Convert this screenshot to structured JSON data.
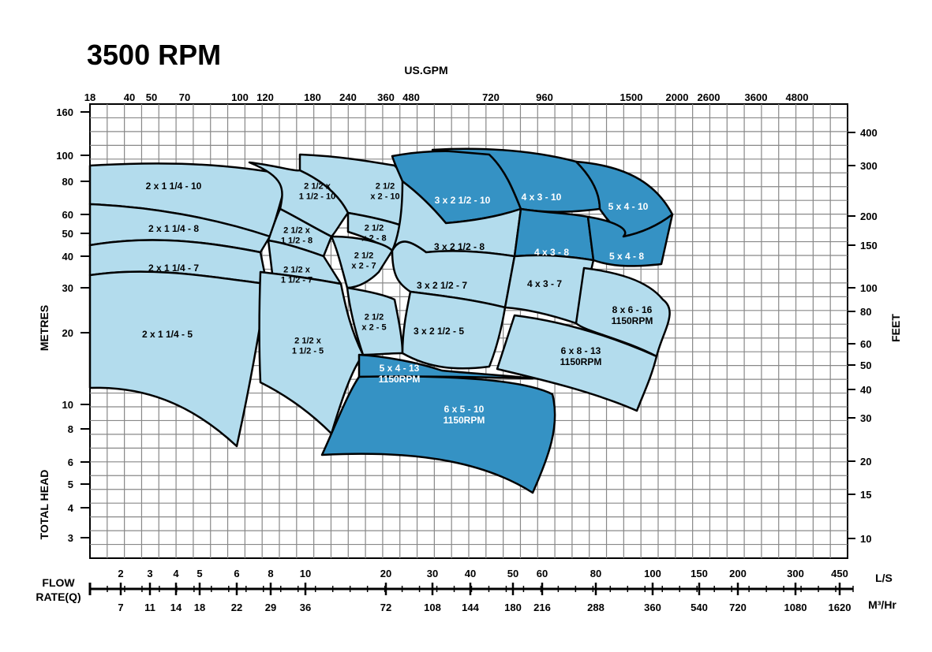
{
  "chart_data": {
    "type": "area",
    "title": "3500 RPM",
    "top_axis_title": "US.GPM",
    "top_ticks": [
      "18",
      "40",
      "50",
      "70",
      "100",
      "120",
      "180",
      "240",
      "360",
      "480",
      "720",
      "960",
      "1500",
      "2000",
      "2600",
      "3600",
      "4800"
    ],
    "left_axis_titles": [
      "METRES",
      "TOTAL HEAD"
    ],
    "left_ticks": [
      "160",
      "100",
      "80",
      "60",
      "50",
      "40",
      "30",
      "20",
      "10",
      "8",
      "6",
      "5",
      "4",
      "3"
    ],
    "right_axis_title": "FEET",
    "right_ticks": [
      "400",
      "300",
      "200",
      "150",
      "100",
      "80",
      "60",
      "50",
      "40",
      "30",
      "20",
      "15",
      "10"
    ],
    "bottom_axis_title": [
      "FLOW",
      "RATE(Q)"
    ],
    "bottom_ticks_ls": [
      "2",
      "3",
      "4",
      "5",
      "6",
      "8",
      "10",
      "20",
      "30",
      "40",
      "50",
      "60",
      "80",
      "100",
      "150",
      "200",
      "300",
      "450"
    ],
    "bottom_ticks_m3hr": [
      "7",
      "11",
      "14",
      "18",
      "22",
      "29",
      "36",
      "72",
      "108",
      "144",
      "180",
      "216",
      "288",
      "360",
      "540",
      "720",
      "1080",
      "1620"
    ],
    "unit_ls": "L/S",
    "unit_m3hr": "M³/Hr",
    "colors": {
      "light": "#b3dced",
      "dark": "#3592c4",
      "grid": "#888888",
      "outline": "#000000"
    },
    "regions": [
      {
        "labels": [
          "2 x 1 1/4 - 10"
        ],
        "shade": "light"
      },
      {
        "labels": [
          "2 x 1 1/4 - 8"
        ],
        "shade": "light"
      },
      {
        "labels": [
          "2 x 1 1/4 - 7"
        ],
        "shade": "light"
      },
      {
        "labels": [
          "2 x 1 1/4 - 5"
        ],
        "shade": "light"
      },
      {
        "labels": [
          "2 1/2 x",
          "1 1/2 - 10"
        ],
        "shade": "light"
      },
      {
        "labels": [
          "2 1/2 x",
          "1 1/2 - 8"
        ],
        "shade": "light"
      },
      {
        "labels": [
          "2 1/2 x",
          "1 1/2 - 7"
        ],
        "shade": "light"
      },
      {
        "labels": [
          "2 1/2 x",
          "1 1/2 - 5"
        ],
        "shade": "light"
      },
      {
        "labels": [
          "2 1/2",
          "x 2 - 10"
        ],
        "shade": "light"
      },
      {
        "labels": [
          "2 1/2",
          "x 2 - 8"
        ],
        "shade": "light"
      },
      {
        "labels": [
          "2 1/2",
          "x 2 - 7"
        ],
        "shade": "light"
      },
      {
        "labels": [
          "2 1/2",
          "x 2 - 5"
        ],
        "shade": "light"
      },
      {
        "labels": [
          "3 x 2 1/2 - 10"
        ],
        "shade": "dark"
      },
      {
        "labels": [
          "3 x 2 1/2 - 8"
        ],
        "shade": "light"
      },
      {
        "labels": [
          "3 x 2 1/2 - 7"
        ],
        "shade": "light"
      },
      {
        "labels": [
          "3 x 2 1/2 - 5"
        ],
        "shade": "light"
      },
      {
        "labels": [
          "4 x 3 - 10"
        ],
        "shade": "dark"
      },
      {
        "labels": [
          "4 x 3 - 8"
        ],
        "shade": "dark"
      },
      {
        "labels": [
          "4 x 3 - 7"
        ],
        "shade": "light"
      },
      {
        "labels": [
          "5 x 4 - 10"
        ],
        "shade": "dark"
      },
      {
        "labels": [
          "5 x 4 - 8"
        ],
        "shade": "dark"
      },
      {
        "labels": [
          "5 x 4 - 13",
          "1150RPM"
        ],
        "shade": "dark"
      },
      {
        "labels": [
          "6 x 5 - 10",
          "1150RPM"
        ],
        "shade": "dark"
      },
      {
        "labels": [
          "6 x 8 - 13",
          "1150RPM"
        ],
        "shade": "light"
      },
      {
        "labels": [
          "8 x 6 - 16",
          "1150RPM"
        ],
        "shade": "light"
      }
    ]
  }
}
